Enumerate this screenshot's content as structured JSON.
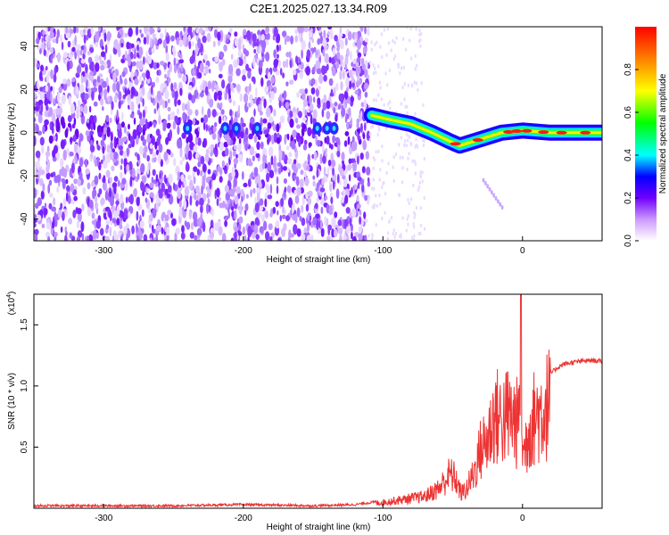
{
  "title": "C2E1.2025.027.13.34.R09",
  "colors": {
    "snr_line": "#ee3333",
    "background": "#ffffff",
    "axis": "#000000"
  },
  "chart_data": [
    {
      "type": "heatmap",
      "name": "spectrogram",
      "xlabel": "Height of straight line (km)",
      "ylabel": "Frequency (Hz)",
      "xlim": [
        -350,
        57
      ],
      "ylim": [
        -50,
        49
      ],
      "x_ticks": [
        -300,
        -200,
        -100,
        0
      ],
      "x_tick_labels": [
        "-300",
        "-200",
        "-100",
        "0"
      ],
      "y_ticks": [
        -40,
        -20,
        0,
        20,
        40
      ],
      "y_tick_labels": [
        "-40",
        "-20",
        "0",
        "20",
        "40"
      ],
      "noise_region_x": [
        -350,
        -110
      ],
      "signal_track": [
        {
          "x": -108,
          "f": 8
        },
        {
          "x": -95,
          "f": 6
        },
        {
          "x": -80,
          "f": 4
        },
        {
          "x": -65,
          "f": 0
        },
        {
          "x": -52,
          "f": -4
        },
        {
          "x": -45,
          "f": -6
        },
        {
          "x": -35,
          "f": -4
        },
        {
          "x": -25,
          "f": -2
        },
        {
          "x": -15,
          "f": 0
        },
        {
          "x": 0,
          "f": 1
        },
        {
          "x": 20,
          "f": 0
        },
        {
          "x": 57,
          "f": 0
        }
      ],
      "colorbar": {
        "label": "Normalized spectral amplitude",
        "range": [
          0.0,
          1.0
        ],
        "ticks": [
          0.0,
          0.2,
          0.4,
          0.6,
          0.8
        ],
        "tick_labels": [
          "0.0",
          "0.2",
          "0.4",
          "0.6",
          "0.8"
        ]
      }
    },
    {
      "type": "line",
      "name": "snr",
      "xlabel": "Height of straight line (km)",
      "ylabel": "SNR (10 * v/v)",
      "scale_label": "(x10",
      "scale_exponent": "4",
      "xlim": [
        -350,
        57
      ],
      "ylim": [
        0,
        1.75
      ],
      "x_ticks": [
        -300,
        -200,
        -100,
        0
      ],
      "x_tick_labels": [
        "-300",
        "-200",
        "-100",
        "0"
      ],
      "y_ticks": [
        0.5,
        1.0,
        1.5
      ],
      "y_tick_labels": [
        "0.5",
        "1.0",
        "1.5"
      ],
      "series": [
        {
          "name": "SNR",
          "x": [
            -350,
            -300,
            -250,
            -200,
            -150,
            -120,
            -100,
            -90,
            -80,
            -70,
            -60,
            -52,
            -48,
            -44,
            -40,
            -35,
            -30,
            -25,
            -20,
            -15,
            -10,
            -6,
            -3,
            -1,
            0,
            5,
            10,
            15,
            20,
            25,
            30,
            40,
            50,
            57
          ],
          "y": [
            0.02,
            0.02,
            0.02,
            0.03,
            0.02,
            0.03,
            0.06,
            0.08,
            0.1,
            0.12,
            0.2,
            0.35,
            0.3,
            0.15,
            0.2,
            0.35,
            0.6,
            0.7,
            0.95,
            0.9,
            0.95,
            0.9,
            0.85,
            1.75,
            0.5,
            0.85,
            0.95,
            1.0,
            1.1,
            1.15,
            1.18,
            1.2,
            1.21,
            1.2
          ]
        }
      ]
    }
  ]
}
